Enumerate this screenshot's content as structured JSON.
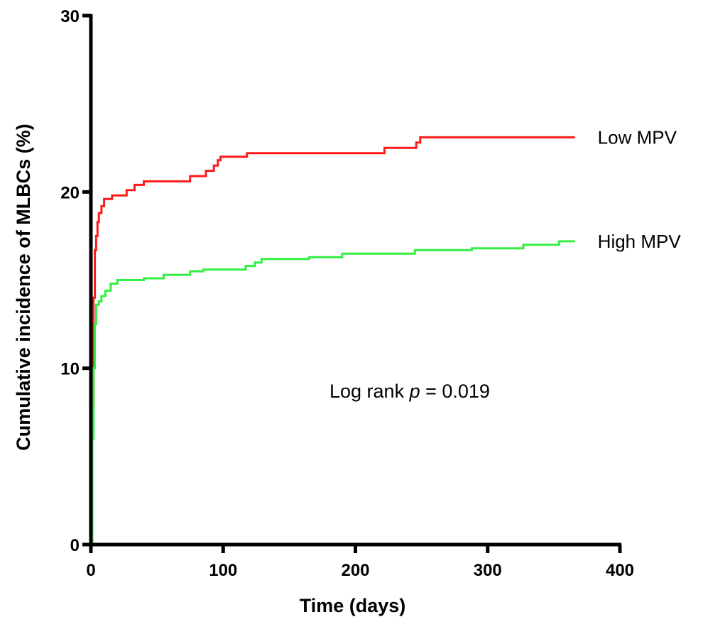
{
  "chart_data": {
    "type": "line",
    "step": true,
    "title": "",
    "xlabel": "Time (days)",
    "ylabel": "Cumulative incidence of MLBCs (%)",
    "xlim": [
      0,
      400
    ],
    "ylim": [
      0,
      30
    ],
    "xticks": [
      0,
      100,
      200,
      300,
      400
    ],
    "yticks": [
      0,
      10,
      20,
      30
    ],
    "xtick_labels": [
      "0",
      "100",
      "200",
      "300",
      "400"
    ],
    "ytick_labels": [
      "0",
      "10",
      "20",
      "30"
    ],
    "grid": false,
    "legend": "inline-right",
    "annotation": {
      "prefix": "Log rank ",
      "italic": "p",
      "suffix": " = 0.019"
    },
    "series": [
      {
        "name": "Low MPV",
        "color": "#ff1a1a",
        "points": [
          [
            0,
            0
          ],
          [
            1,
            8
          ],
          [
            2,
            14
          ],
          [
            3,
            16.7
          ],
          [
            4,
            17.5
          ],
          [
            5,
            18.3
          ],
          [
            6,
            18.8
          ],
          [
            8,
            19.2
          ],
          [
            10,
            19.6
          ],
          [
            16,
            19.8
          ],
          [
            27,
            20.1
          ],
          [
            33,
            20.4
          ],
          [
            40,
            20.6
          ],
          [
            75,
            20.9
          ],
          [
            87,
            21.2
          ],
          [
            93,
            21.5
          ],
          [
            96,
            21.8
          ],
          [
            98,
            22
          ],
          [
            118,
            22.2
          ],
          [
            222,
            22.5
          ],
          [
            246,
            22.8
          ],
          [
            249,
            23.1
          ],
          [
            366,
            23.1
          ]
        ]
      },
      {
        "name": "High MPV",
        "color": "#33ee44",
        "points": [
          [
            0,
            0
          ],
          [
            1,
            6
          ],
          [
            2,
            10
          ],
          [
            3,
            12.5
          ],
          [
            4,
            13.6
          ],
          [
            6,
            13.8
          ],
          [
            8,
            14.1
          ],
          [
            11,
            14.4
          ],
          [
            15,
            14.8
          ],
          [
            20,
            15
          ],
          [
            40,
            15.1
          ],
          [
            55,
            15.3
          ],
          [
            75,
            15.5
          ],
          [
            85,
            15.6
          ],
          [
            117,
            15.8
          ],
          [
            124,
            16
          ],
          [
            129,
            16.2
          ],
          [
            165,
            16.3
          ],
          [
            190,
            16.5
          ],
          [
            245,
            16.7
          ],
          [
            288,
            16.8
          ],
          [
            327,
            17
          ],
          [
            354,
            17.2
          ],
          [
            366,
            17.2
          ]
        ]
      }
    ]
  }
}
